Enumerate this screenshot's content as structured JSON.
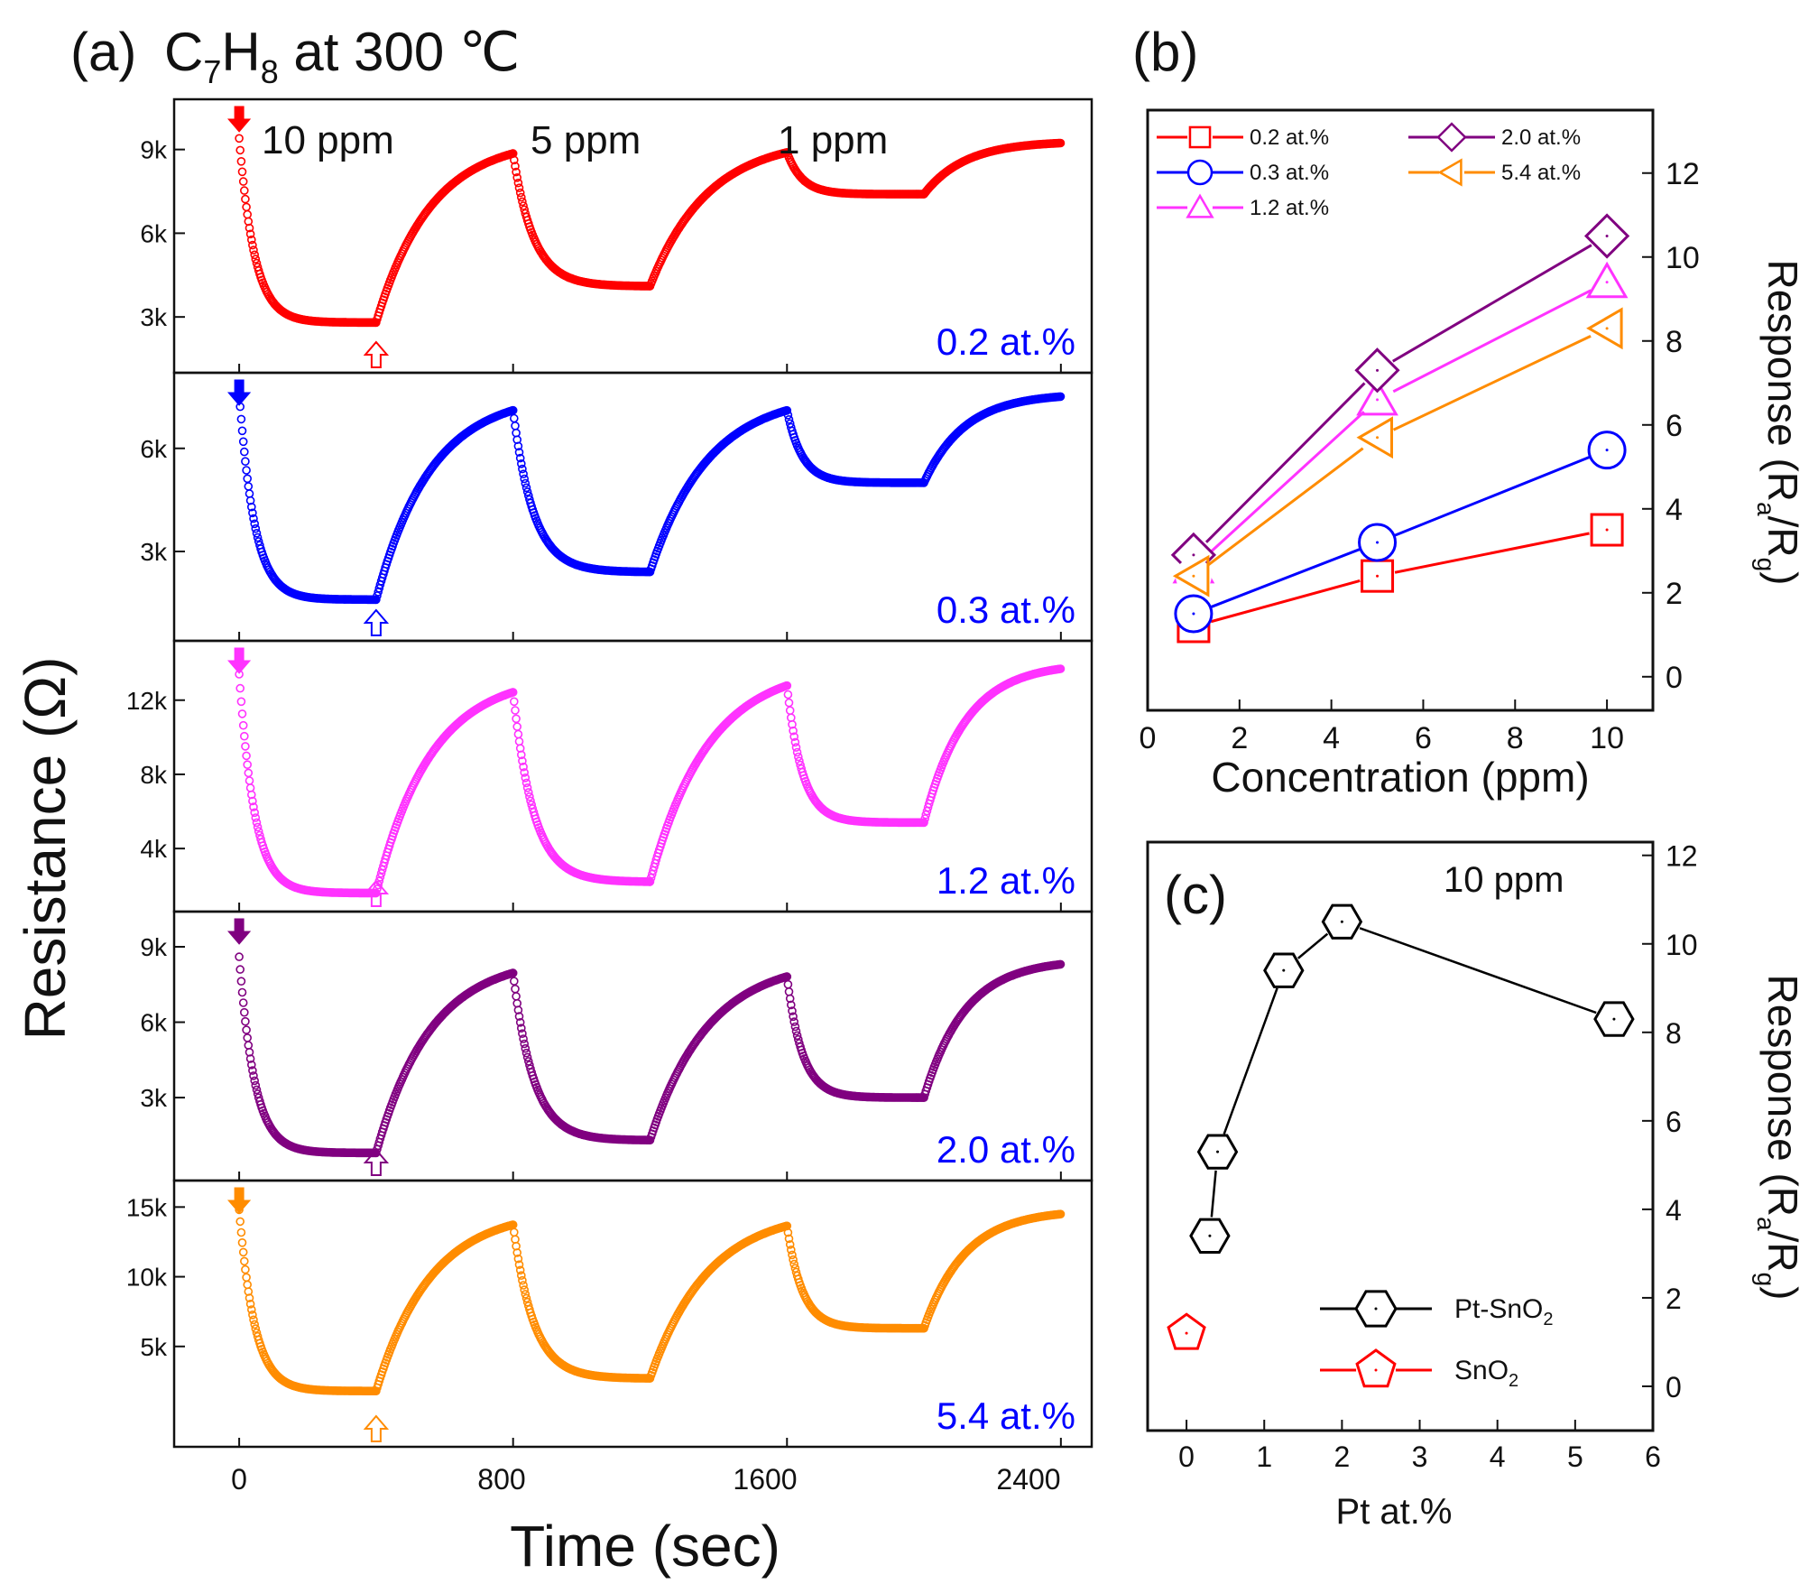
{
  "panel_a": {
    "panel_label": "(a)",
    "title_prefix": "C",
    "title_sub1": "7",
    "title_mid": "H",
    "title_sub2": "8",
    "title_suffix": " at 300 ℃",
    "x_ticks": [
      "0",
      "800",
      "1600",
      "2400"
    ],
    "xlabel": "Time (sec)",
    "ylabel": "Resistance (Ω)",
    "conc_labels": [
      "10 ppm",
      "5 ppm",
      "1 ppm"
    ]
  },
  "panel_b": {
    "panel_label": "(b)",
    "xlabel": "Concentration (ppm)",
    "ylabel_main": "Response (R",
    "ylabel_sub1": "a",
    "ylabel_mid": "/R",
    "ylabel_sub2": "g",
    "ylabel_end": ")",
    "x_ticks": [
      "0",
      "2",
      "4",
      "6",
      "8",
      "10"
    ],
    "y_ticks": [
      "0",
      "2",
      "4",
      "6",
      "8",
      "10",
      "12"
    ]
  },
  "panel_c": {
    "panel_label": "(c)",
    "annotation": "10 ppm",
    "xlabel": "Pt at.%",
    "ylabel_main": "Response (R",
    "ylabel_sub1": "a",
    "ylabel_mid": "/R",
    "ylabel_sub2": "g",
    "ylabel_end": ")",
    "x_ticks": [
      "0",
      "1",
      "2",
      "3",
      "4",
      "5",
      "6"
    ],
    "y_ticks": [
      "0",
      "2",
      "4",
      "6",
      "8",
      "10",
      "12"
    ],
    "legend_pt_prefix": "Pt-SnO",
    "legend_pt_sub": "2",
    "legend_sn_prefix": "SnO",
    "legend_sn_sub": "2"
  },
  "chart_data": [
    {
      "type": "scatter",
      "panel": "a",
      "xlabel": "Time (sec)",
      "ylabel": "Resistance (Ω)",
      "xlim": [
        -190,
        2490
      ],
      "series": [
        {
          "name": "0.2 at.%",
          "color": "#ff0000",
          "y_ticks": [
            "3k",
            "6k",
            "9k"
          ],
          "ylim": [
            1000,
            10800
          ],
          "baseline": [
            9400,
            9400,
            9300
          ],
          "minimum": [
            2800,
            4100,
            7400
          ],
          "gas_on": [
            0,
            800,
            1600
          ],
          "gas_off": [
            400,
            1200,
            2000
          ]
        },
        {
          "name": "0.3 at.%",
          "color": "#0000ff",
          "y_ticks": [
            "3k",
            "6k"
          ],
          "ylim": [
            400,
            8200
          ],
          "baseline": [
            7600,
            7600,
            7600
          ],
          "minimum": [
            1600,
            2400,
            5000
          ],
          "gas_on": [
            0,
            800,
            1600
          ],
          "gas_off": [
            400,
            1200,
            2000
          ]
        },
        {
          "name": "1.2 at.%",
          "color": "#ff33ff",
          "y_ticks": [
            "4k",
            "8k",
            "12k"
          ],
          "ylim": [
            600,
            15200
          ],
          "baseline": [
            13400,
            13900,
            14000
          ],
          "minimum": [
            1600,
            2200,
            5400
          ],
          "gas_on": [
            0,
            800,
            1600
          ],
          "gas_off": [
            400,
            1200,
            2000
          ]
        },
        {
          "name": "2.0 at.%",
          "color": "#800080",
          "y_ticks": [
            "3k",
            "6k",
            "9k"
          ],
          "ylim": [
            -300,
            10400
          ],
          "baseline": [
            8600,
            8500,
            8500
          ],
          "minimum": [
            800,
            1300,
            3000
          ],
          "gas_on": [
            0,
            800,
            1600
          ],
          "gas_off": [
            400,
            1200,
            2000
          ]
        },
        {
          "name": "5.4 at.%",
          "color": "#ff8c00",
          "y_ticks": [
            "5k",
            "10k",
            "15k"
          ],
          "ylim": [
            -2200,
            16900
          ],
          "baseline": [
            14800,
            14800,
            14800
          ],
          "minimum": [
            1800,
            2700,
            6300
          ],
          "gas_on": [
            0,
            800,
            1600
          ],
          "gas_off": [
            400,
            1200,
            2000
          ]
        }
      ]
    },
    {
      "type": "line",
      "panel": "b",
      "xlabel": "Concentration (ppm)",
      "ylabel": "Response (Ra/Rg)",
      "xlim": [
        0,
        11
      ],
      "ylim": [
        -0.8,
        13.5
      ],
      "x": [
        1,
        5,
        10
      ],
      "legend": "top-left",
      "series": [
        {
          "name": "0.2 at.%",
          "color": "#ff0000",
          "marker": "square",
          "values": [
            1.2,
            2.4,
            3.5
          ]
        },
        {
          "name": "0.3 at.%",
          "color": "#0000ff",
          "marker": "circle",
          "values": [
            1.5,
            3.2,
            5.4
          ]
        },
        {
          "name": "1.2 at.%",
          "color": "#ff33ff",
          "marker": "triangle-up",
          "values": [
            2.6,
            6.6,
            9.4
          ]
        },
        {
          "name": "2.0 at.%",
          "color": "#800080",
          "marker": "diamond",
          "values": [
            2.9,
            7.3,
            10.5
          ]
        },
        {
          "name": "5.4 at.%",
          "color": "#ff8c00",
          "marker": "triangle-left",
          "values": [
            2.4,
            5.7,
            8.3
          ]
        }
      ]
    },
    {
      "type": "line",
      "panel": "c",
      "xlabel": "Pt at.%",
      "ylabel": "Response (Ra/Rg)",
      "xlim": [
        -0.5,
        6
      ],
      "ylim": [
        -1,
        12.3
      ],
      "legend": "bottom-right",
      "series": [
        {
          "name": "Pt-SnO2",
          "color": "#000000",
          "marker": "hexagon",
          "x": [
            0.3,
            0.4,
            1.25,
            2.0,
            5.5
          ],
          "values": [
            3.4,
            5.3,
            9.4,
            10.5,
            8.3
          ]
        },
        {
          "name": "SnO2",
          "color": "#ff0000",
          "marker": "pentagon",
          "x": [
            0
          ],
          "values": [
            1.2
          ]
        }
      ]
    }
  ]
}
